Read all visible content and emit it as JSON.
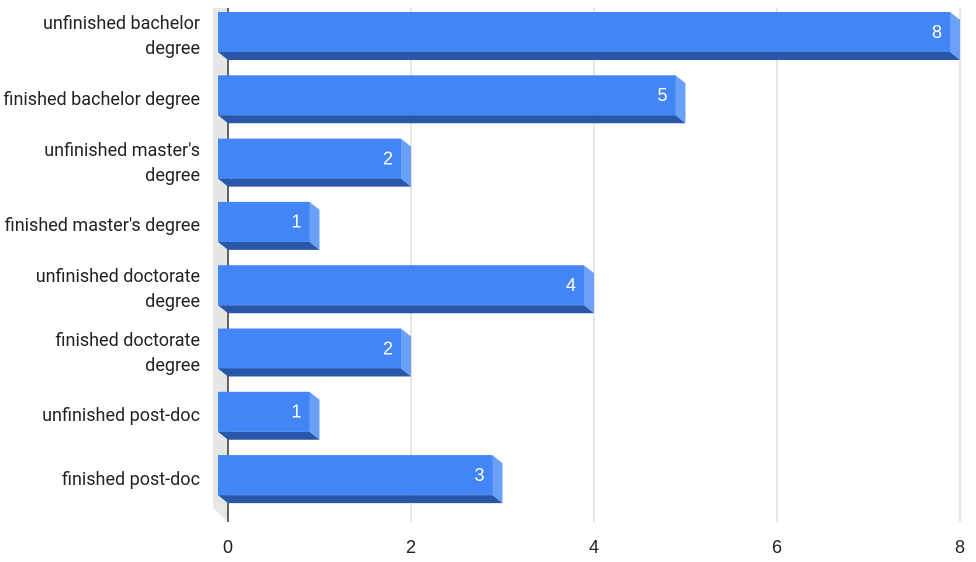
{
  "chart_data": {
    "type": "bar",
    "orientation": "horizontal",
    "categories": [
      "unfinished bachelor degree",
      "finished bachelor degree",
      "unfinished master's degree",
      "finished master's degree",
      "unfinished doctorate degree",
      "finished doctorate degree",
      "unfinished post-doc",
      "finished post-doc"
    ],
    "values": [
      8,
      5,
      2,
      1,
      4,
      2,
      1,
      3
    ],
    "color": "#4285f4",
    "xlim": [
      0,
      8
    ],
    "xticks": [
      0,
      2,
      4,
      6,
      8
    ],
    "grid": true
  }
}
